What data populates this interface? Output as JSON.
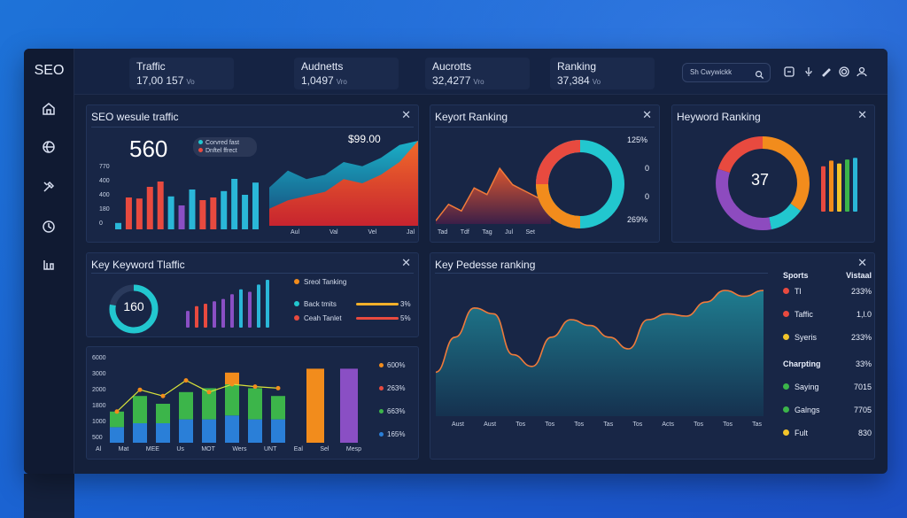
{
  "sidebar": {
    "brand": "SEO",
    "icons": [
      "home-icon",
      "globe-icon",
      "tools-icon",
      "clock-icon",
      "reports-icon"
    ]
  },
  "topbar": {
    "stats": [
      {
        "label": "Traffic",
        "value": "17,00 157",
        "unit": "Vo"
      },
      {
        "label": "Audnetts",
        "value": "1,0497",
        "unit": "Vro"
      },
      {
        "label": "Aucrotts",
        "value": "32,4277",
        "unit": "Vro"
      },
      {
        "label": "Ranking",
        "value": "37,384",
        "unit": "Vo"
      }
    ],
    "search_text": "Sh Cwywickk",
    "icons": [
      "bell-icon",
      "mic-icon",
      "pen-icon",
      "gear-icon",
      "user-icon"
    ]
  },
  "panels": {
    "traffic": {
      "title": "SEO wesule traffic",
      "big_number": "560",
      "legend": [
        "Corvred fast",
        "Dnftel ffrect"
      ],
      "price_label": "$99.00",
      "y_ticks": [
        "770",
        "400",
        "400",
        "180",
        "0"
      ],
      "area_x_labels": [
        "Aul",
        "Val",
        "Vel",
        "Jal"
      ],
      "bar_values": [
        12,
        60,
        58,
        80,
        90,
        62,
        45,
        75,
        55,
        60,
        72,
        95,
        65,
        88
      ],
      "bar_colors": [
        "#2ab7d8",
        "#e84a3f",
        "#e84a3f",
        "#e84a3f",
        "#e84a3f",
        "#2ab7d8",
        "#8a4fc4",
        "#2ab7d8",
        "#e84a3f",
        "#e84a3f",
        "#2ab7d8",
        "#2ab7d8",
        "#2ab7d8",
        "#2ab7d8"
      ],
      "area_series": [
        {
          "color": "#1bb0c8",
          "values": [
            45,
            65,
            55,
            60,
            75,
            70,
            80,
            95,
            100
          ]
        },
        {
          "color": "#e0562f",
          "values": [
            20,
            30,
            35,
            40,
            55,
            50,
            60,
            75,
            100
          ]
        }
      ]
    },
    "keyword_ranking": {
      "title": "Keyort Ranking",
      "x_labels": [
        "Tad",
        "Tdf",
        "Tag",
        "Jul",
        "Set"
      ],
      "right_labels": [
        "125%",
        "0",
        "0",
        "269%"
      ],
      "area_values": [
        5,
        30,
        20,
        55,
        45,
        85,
        60,
        50,
        40,
        25
      ]
    },
    "heyword_ranking": {
      "title": "Heyword Ranking",
      "center_value": "37",
      "donut_colors": [
        "#f28c1c",
        "#22c7cf",
        "#8d4bbf",
        "#e84a3f"
      ],
      "donut_values": [
        35,
        12,
        33,
        20
      ],
      "bars": [
        {
          "color": "#e84a3f",
          "value": 80
        },
        {
          "color": "#f28c1c",
          "value": 90
        },
        {
          "color": "#f2c42a",
          "value": 85
        },
        {
          "color": "#3cb54a",
          "value": 92
        },
        {
          "color": "#2ab7d8",
          "value": 95
        }
      ]
    },
    "key_keyword_traffic": {
      "title": "Key Keyword Tlaffic",
      "gauge_value": "160",
      "gauge_fraction": 0.78,
      "bar_values": [
        35,
        45,
        50,
        55,
        60,
        70,
        80,
        75,
        90,
        100
      ],
      "bar_colors": [
        "#8a4fc4",
        "#e84a3f",
        "#e84a3f",
        "#8a4fc4",
        "#8a4fc4",
        "#8a4fc4",
        "#2ab7d8",
        "#8a4fc4",
        "#2ab7d8",
        "#2ab7d8"
      ],
      "legend": [
        {
          "label": "Sreol Tanking",
          "color": "#f28c1c",
          "bar": null,
          "pct": ""
        },
        {
          "label": "Back tmits",
          "color": "#22c7cf",
          "bar": "#f2b02a",
          "pct": "3%"
        },
        {
          "label": "Ceah Tanlet",
          "color": "#e84a3f",
          "bar": "#e84a3f",
          "pct": "5%"
        }
      ]
    },
    "stacked": {
      "y_ticks": [
        "6000",
        "3000",
        "2000",
        "1800",
        "1000",
        "500"
      ],
      "x_labels": [
        "Al",
        "Mat",
        "MEE",
        "Us",
        "MOT",
        "Wers",
        "UNT",
        "Eal",
        "Sel",
        "Mesp"
      ],
      "legend": [
        {
          "label": "600%",
          "color": "#f28c1c"
        },
        {
          "label": "263%",
          "color": "#e84a3f"
        },
        {
          "label": "663%",
          "color": "#3cb54a"
        },
        {
          "label": "165%",
          "color": "#2a7fd8"
        }
      ],
      "stacks": [
        {
          "blue": 20,
          "green": 20,
          "orange": 0
        },
        {
          "blue": 25,
          "green": 35,
          "orange": 0
        },
        {
          "blue": 25,
          "green": 25,
          "orange": 0
        },
        {
          "blue": 30,
          "green": 35,
          "orange": 0
        },
        {
          "blue": 30,
          "green": 40,
          "orange": 0
        },
        {
          "blue": 35,
          "green": 40,
          "orange": 15
        },
        {
          "blue": 30,
          "green": 40,
          "orange": 0
        },
        {
          "blue": 30,
          "green": 30,
          "orange": 0
        }
      ],
      "line_values": [
        40,
        68,
        60,
        80,
        65,
        75,
        72,
        70
      ],
      "tall_bars": [
        {
          "color": "#f28c1c",
          "value": 95
        },
        {
          "color": "#8a4fc4",
          "value": 95
        }
      ]
    },
    "ranking": {
      "title": "Key Pedesse ranking",
      "x_labels": [
        "Aust",
        "Aust",
        "Tos",
        "Tos",
        "Tos",
        "Tas",
        "Tos",
        "Acts",
        "Tos",
        "Tos",
        "Tas"
      ],
      "line_values": [
        30,
        60,
        85,
        80,
        45,
        35,
        60,
        75,
        70,
        60,
        50,
        75,
        80,
        78,
        90,
        100,
        95,
        100
      ],
      "table_header": [
        "Sports",
        "Vistaal"
      ],
      "rows_top": [
        {
          "color": "#e84a3f",
          "label": "Tl",
          "value": "233%"
        },
        {
          "color": "#e84a3f",
          "label": "Taffic",
          "value": "1,l.0"
        },
        {
          "color": "#f2c42a",
          "label": "Syeris",
          "value": "233%"
        }
      ],
      "table_header2": [
        "Charpting",
        "33%"
      ],
      "rows_bottom": [
        {
          "color": "#3cb54a",
          "label": "Saying",
          "value": "7015"
        },
        {
          "color": "#3cb54a",
          "label": "Galngs",
          "value": "7705"
        },
        {
          "color": "#f2c42a",
          "label": "Fult",
          "value": "830"
        }
      ]
    }
  }
}
